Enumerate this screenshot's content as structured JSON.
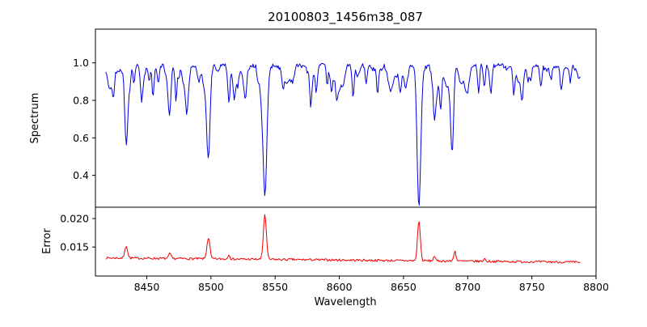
{
  "figure": {
    "background": "#ffffff",
    "spine_color": "#000000"
  },
  "chart_data": [
    {
      "type": "line",
      "title": "20100803_1456m38_087",
      "xlabel": "Wavelength",
      "ylabel": "Spectrum",
      "color": "#0000dd",
      "xlim": [
        8410,
        8800
      ],
      "ylim": [
        0.23,
        1.18
      ],
      "x_data_range": [
        8418,
        8788
      ],
      "xticks": [
        8450,
        8500,
        8550,
        8600,
        8650,
        8700,
        8750,
        8800
      ],
      "xtick_labels": [
        "8450",
        "8500",
        "8550",
        "8600",
        "8650",
        "8700",
        "8750",
        "8800"
      ],
      "yticks": [
        1.0,
        0.8,
        0.6,
        0.4
      ],
      "ytick_labels": [
        "1.0",
        "0.8",
        "0.6",
        "0.4"
      ],
      "legend": "none",
      "grid": false,
      "continuum": 0.985,
      "noise_amplitude": 0.024,
      "noise_seed": 42,
      "weak_line_count": 90,
      "absorption_lines": [
        {
          "center": 8424,
          "depth": 0.15,
          "width": 1.2
        },
        {
          "center": 8434,
          "depth": 0.38,
          "width": 1.6
        },
        {
          "center": 8440,
          "depth": 0.1,
          "width": 1.0
        },
        {
          "center": 8446,
          "depth": 0.12,
          "width": 1.0
        },
        {
          "center": 8452,
          "depth": 0.09,
          "width": 1.0
        },
        {
          "center": 8459,
          "depth": 0.08,
          "width": 1.0
        },
        {
          "center": 8468,
          "depth": 0.21,
          "width": 1.4
        },
        {
          "center": 8475,
          "depth": 0.08,
          "width": 1.0
        },
        {
          "center": 8498,
          "depth": 0.49,
          "width": 1.8
        },
        {
          "center": 8514,
          "depth": 0.2,
          "width": 1.2
        },
        {
          "center": 8518,
          "depth": 0.12,
          "width": 1.0
        },
        {
          "center": 8527,
          "depth": 0.1,
          "width": 1.0
        },
        {
          "center": 8542,
          "depth": 0.69,
          "width": 2.2
        },
        {
          "center": 8556,
          "depth": 0.08,
          "width": 1.0
        },
        {
          "center": 8582,
          "depth": 0.1,
          "width": 1.0
        },
        {
          "center": 8598,
          "depth": 0.11,
          "width": 1.0
        },
        {
          "center": 8611,
          "depth": 0.08,
          "width": 1.0
        },
        {
          "center": 8621,
          "depth": 0.1,
          "width": 1.0
        },
        {
          "center": 8648,
          "depth": 0.08,
          "width": 1.0
        },
        {
          "center": 8662,
          "depth": 0.68,
          "width": 2.0
        },
        {
          "center": 8674,
          "depth": 0.17,
          "width": 1.2
        },
        {
          "center": 8679,
          "depth": 0.22,
          "width": 1.2
        },
        {
          "center": 8688,
          "depth": 0.36,
          "width": 1.5
        },
        {
          "center": 8713,
          "depth": 0.12,
          "width": 1.0
        },
        {
          "center": 8718,
          "depth": 0.09,
          "width": 1.0
        },
        {
          "center": 8736,
          "depth": 0.11,
          "width": 1.0
        },
        {
          "center": 8747,
          "depth": 0.08,
          "width": 1.0
        },
        {
          "center": 8757,
          "depth": 0.12,
          "width": 1.0
        },
        {
          "center": 8773,
          "depth": 0.14,
          "width": 1.2
        },
        {
          "center": 8780,
          "depth": 0.08,
          "width": 1.0
        }
      ]
    },
    {
      "type": "line",
      "ylabel": "Error",
      "color": "#ee0000",
      "ylim": [
        0.0099,
        0.022
      ],
      "yticks": [
        0.02,
        0.015
      ],
      "ytick_labels": [
        "0.020",
        "0.015"
      ],
      "grid": false,
      "baseline_start": 0.0131,
      "baseline_end": 0.0123,
      "noise_amplitude": 0.0004,
      "noise_seed": 7,
      "peaks": [
        {
          "center": 8434,
          "height": 0.0022,
          "width": 1.5
        },
        {
          "center": 8468,
          "height": 0.0009,
          "width": 1.2
        },
        {
          "center": 8498,
          "height": 0.0037,
          "width": 1.6
        },
        {
          "center": 8514,
          "height": 0.0009,
          "width": 1.0
        },
        {
          "center": 8542,
          "height": 0.0079,
          "width": 1.6
        },
        {
          "center": 8662,
          "height": 0.0071,
          "width": 1.5
        },
        {
          "center": 8674,
          "height": 0.0009,
          "width": 1.0
        },
        {
          "center": 8690,
          "height": 0.0018,
          "width": 1.2
        },
        {
          "center": 8713,
          "height": 0.0005,
          "width": 1.0
        }
      ]
    }
  ]
}
